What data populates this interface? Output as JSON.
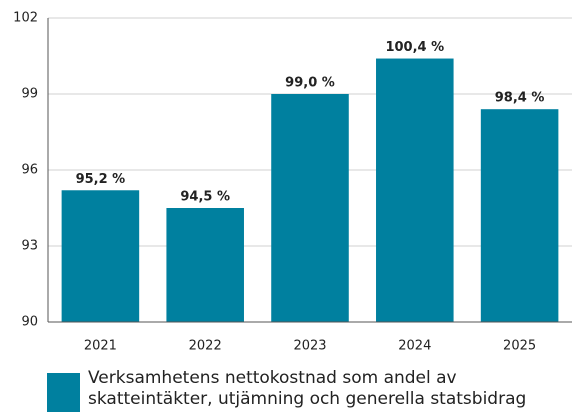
{
  "chart_data": {
    "type": "bar",
    "categories": [
      "2021",
      "2022",
      "2023",
      "2024",
      "2025"
    ],
    "series": [
      {
        "name": "Verksamhetens nettokostnad som andel av skatteintäkter, utjämning och generella statsbidrag",
        "color": "#00809f",
        "values": [
          95.2,
          94.5,
          99.0,
          100.4,
          98.4
        ],
        "value_labels": [
          "95,2 %",
          "94,5 %",
          "99,0 %",
          "100,4 %",
          "98,4 %"
        ]
      }
    ],
    "ylim": [
      90,
      102
    ],
    "yticks": [
      90,
      93,
      96,
      99,
      102
    ],
    "grid": true
  }
}
